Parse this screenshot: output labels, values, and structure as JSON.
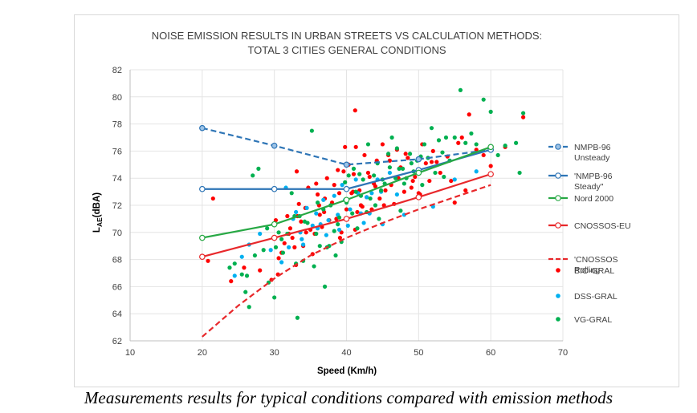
{
  "chart_data": {
    "type": "scatter",
    "title": [
      "NOISE EMISSION RESULTS IN URBAN STREETS VS CALCULATION METHODS:",
      "TOTAL 3 CITIES GENERAL CONDITIONS"
    ],
    "xlabel": "Speed (Km/h)",
    "ylabel_main": "L",
    "ylabel_sub": "AE",
    "ylabel_unit": "(dBA)",
    "xlim": [
      10,
      70
    ],
    "ylim": [
      62,
      82
    ],
    "xticks": [
      10,
      20,
      30,
      40,
      50,
      60,
      70
    ],
    "yticks": [
      62,
      64,
      66,
      68,
      70,
      72,
      74,
      76,
      78,
      80,
      82
    ],
    "series": [
      {
        "name": "NMPB-96 Unsteady",
        "label_lines": [
          "NMPB-96",
          "Unsteady"
        ],
        "kind": "line",
        "color": "#2e75b6",
        "marker": "#9dc3e6",
        "dash": "dashed",
        "x": [
          20,
          30,
          40,
          50,
          60
        ],
        "y": [
          77.7,
          76.4,
          75.0,
          75.4,
          76.1
        ]
      },
      {
        "name": "'NMPB-96 Steady\"",
        "label_lines": [
          "'NMPB-96",
          "Steady\""
        ],
        "kind": "line",
        "color": "#2e75b6",
        "marker": "#ffffff",
        "dash": "solid",
        "x": [
          20,
          30,
          40,
          50,
          60
        ],
        "y": [
          73.2,
          73.2,
          73.2,
          74.6,
          76.1
        ]
      },
      {
        "name": "Nord 2000",
        "label_lines": [
          "Nord 2000"
        ],
        "kind": "line",
        "color": "#27a844",
        "marker": "#ffffff",
        "dash": "solid",
        "x": [
          20,
          30,
          40,
          50,
          60
        ],
        "y": [
          69.6,
          70.6,
          72.4,
          74.4,
          76.3
        ]
      },
      {
        "name": "CNOSSOS-EU",
        "label_lines": [
          "CNOSSOS-EU"
        ],
        "kind": "line",
        "color": "#e8282b",
        "marker": "#ffffff",
        "dash": "solid",
        "x": [
          20,
          30,
          40,
          50,
          60
        ],
        "y": [
          68.2,
          69.6,
          71.0,
          72.6,
          74.3
        ]
      },
      {
        "name": "'CNOSSOS Rolling",
        "label_lines": [
          "'CNOSSOS",
          "Rolling"
        ],
        "kind": "line",
        "color": "#e8282b",
        "marker": null,
        "dash": "dashed",
        "x": [
          20,
          25,
          30,
          35,
          40,
          45,
          50,
          55,
          60
        ],
        "y": [
          62.3,
          64.6,
          66.6,
          68.3,
          69.6,
          70.7,
          71.7,
          72.6,
          73.5
        ]
      },
      {
        "name": "BIO-GRAL",
        "label_lines": [
          "BIO-GRAL"
        ],
        "kind": "scatter",
        "color": "#ff0000",
        "x": [
          20.8,
          21.5,
          24.0,
          25.8,
          28.0,
          29.6,
          30.2,
          30.5,
          31.0,
          31.4,
          31.8,
          32.2,
          32.5,
          32.8,
          33.1,
          33.4,
          33.7,
          34.0,
          34.3,
          34.7,
          35.0,
          35.3,
          35.6,
          36.0,
          36.3,
          36.6,
          37.0,
          37.3,
          37.6,
          38.0,
          38.3,
          38.6,
          39.0,
          39.3,
          39.6,
          40.0,
          40.3,
          40.7,
          41.0,
          41.2,
          41.5,
          41.8,
          42.2,
          42.5,
          42.8,
          43.2,
          43.5,
          43.8,
          44.2,
          44.6,
          45.0,
          45.4,
          45.8,
          46.2,
          46.6,
          47.0,
          47.5,
          48.0,
          48.5,
          49.0,
          49.5,
          50.0,
          50.5,
          51.0,
          51.5,
          52.0,
          52.5,
          53.0,
          54.0,
          55.0,
          55.5,
          56.0,
          56.5,
          57.0,
          58.0,
          59.0,
          60.0,
          62.0,
          64.5,
          30.6,
          32.0,
          33.2,
          34.4,
          35.8,
          36.9,
          38.8,
          39.8,
          40.9,
          41.3,
          42.0,
          43.0,
          44.0,
          45.2,
          46.0,
          47.2,
          48.2,
          49.2,
          50.2,
          51.8,
          54.5,
          41.2,
          36.2,
          33.0,
          39.1
        ],
        "y": [
          67.9,
          72.5,
          66.4,
          67.4,
          67.2,
          66.5,
          70.9,
          66.9,
          68.5,
          69.2,
          71.2,
          70.3,
          69.6,
          68.9,
          74.5,
          72.1,
          70.8,
          69.0,
          71.8,
          73.3,
          70.2,
          68.4,
          69.9,
          72.8,
          71.3,
          70.4,
          72.5,
          74.0,
          70.9,
          72.2,
          73.5,
          71.0,
          72.9,
          70.0,
          74.5,
          71.7,
          75.0,
          72.9,
          74.3,
          79.0,
          71.5,
          73.1,
          71.9,
          75.7,
          72.6,
          74.1,
          71.7,
          73.6,
          75.3,
          72.5,
          76.5,
          73.1,
          75.7,
          73.5,
          72.1,
          76.1,
          74.8,
          73.0,
          75.5,
          73.3,
          74.1,
          72.9,
          76.5,
          75.1,
          73.8,
          76.0,
          75.2,
          74.4,
          75.6,
          72.2,
          76.6,
          77.0,
          73.1,
          78.7,
          76.1,
          75.7,
          74.9,
          76.3,
          78.5,
          68.1,
          69.9,
          71.2,
          70.0,
          73.6,
          71.5,
          74.6,
          76.3,
          73.0,
          76.3,
          72.0,
          74.4,
          73.4,
          72.0,
          75.3,
          74.0,
          75.8,
          73.8,
          72.8,
          75.2,
          73.8,
          70.2,
          72.0,
          67.6,
          69.6
        ]
      },
      {
        "name": "DSS-GRAL",
        "label_lines": [
          "DSS-GRAL"
        ],
        "kind": "scatter",
        "color": "#00b0f0",
        "x": [
          24.5,
          25.5,
          26.5,
          28.0,
          29.5,
          31.0,
          32.0,
          33.0,
          33.8,
          34.5,
          35.3,
          36.0,
          36.8,
          37.5,
          38.3,
          39.0,
          39.8,
          40.5,
          41.3,
          42.0,
          42.8,
          43.5,
          44.3,
          45.0,
          46.0,
          47.0,
          48.0,
          50.0,
          52.0,
          55.0,
          58.0,
          30.0,
          32.6,
          34.0,
          35.8,
          37.2,
          38.8,
          40.2,
          41.6,
          43.2,
          36.4,
          39.4,
          42.4,
          31.6,
          33.6,
          44.8
        ],
        "y": [
          66.8,
          68.2,
          69.1,
          69.9,
          68.7,
          67.8,
          68.9,
          71.5,
          69.5,
          71.8,
          70.5,
          70.3,
          72.4,
          70.9,
          72.7,
          70.2,
          72.4,
          71.7,
          73.9,
          71.4,
          72.6,
          72.9,
          73.9,
          70.6,
          74.4,
          72.8,
          71.3,
          74.6,
          71.9,
          73.9,
          74.5,
          69.6,
          71.0,
          69.1,
          71.4,
          69.8,
          71.3,
          70.5,
          72.9,
          71.4,
          70.6,
          73.5,
          70.7,
          73.3,
          70.0,
          73.0
        ]
      },
      {
        "name": "VG-GRAL",
        "label_lines": [
          "VG-GRAL"
        ],
        "kind": "scatter",
        "color": "#00b050",
        "x": [
          23.8,
          24.5,
          25.5,
          26.0,
          26.5,
          27.0,
          27.8,
          28.5,
          29.2,
          30.0,
          30.6,
          31.2,
          31.8,
          32.4,
          33.0,
          33.5,
          34.0,
          34.6,
          35.2,
          35.8,
          36.3,
          36.8,
          37.3,
          37.8,
          38.3,
          38.8,
          39.3,
          39.8,
          40.3,
          40.8,
          41.3,
          41.8,
          42.3,
          42.8,
          43.3,
          43.8,
          44.3,
          44.8,
          45.3,
          45.8,
          46.3,
          46.8,
          47.3,
          47.8,
          48.3,
          48.8,
          49.3,
          49.8,
          50.3,
          50.8,
          51.3,
          51.8,
          52.3,
          52.8,
          53.3,
          53.8,
          54.3,
          55.0,
          55.8,
          56.5,
          57.3,
          58.0,
          59.0,
          60.0,
          61.0,
          62.0,
          63.5,
          64.0,
          64.5,
          33.2,
          37.0,
          30.2,
          35.5,
          38.5,
          41.5,
          44.5,
          47.5,
          50.5,
          53.5,
          26.2,
          27.3,
          29.0,
          31.0,
          32.8,
          34.2,
          36.0,
          37.6,
          39.0,
          40.0,
          41.0,
          42.0,
          43.0,
          44.0,
          45.0,
          46.0,
          47.0,
          48.0,
          49.0
        ],
        "y": [
          67.4,
          67.7,
          66.9,
          65.6,
          64.5,
          74.2,
          74.7,
          68.7,
          66.3,
          65.2,
          70.0,
          68.5,
          69.9,
          72.9,
          67.7,
          71.2,
          67.9,
          70.7,
          77.5,
          69.9,
          69.0,
          71.7,
          68.9,
          72.0,
          70.1,
          70.6,
          69.3,
          73.7,
          74.2,
          71.4,
          73.0,
          74.3,
          73.9,
          71.5,
          72.5,
          74.2,
          75.1,
          73.1,
          73.6,
          75.8,
          77.0,
          74.0,
          74.7,
          74.7,
          74.0,
          75.8,
          74.5,
          75.3,
          75.6,
          76.5,
          75.5,
          77.7,
          74.4,
          76.8,
          75.9,
          77.0,
          75.3,
          77.0,
          80.5,
          76.6,
          77.3,
          76.5,
          79.8,
          78.9,
          75.7,
          76.4,
          76.6,
          74.4,
          78.8,
          63.7,
          66.0,
          68.9,
          67.5,
          68.3,
          70.3,
          71.0,
          71.6,
          73.5,
          74.1,
          66.8,
          68.3,
          70.3,
          69.5,
          71.2,
          70.8,
          72.2,
          69.0,
          71.1,
          72.2,
          74.7,
          72.7,
          76.5,
          72.0,
          73.9,
          74.8,
          76.2,
          73.6,
          75.1
        ]
      }
    ]
  },
  "caption": "Measurements results for typical conditions compared with emission methods"
}
